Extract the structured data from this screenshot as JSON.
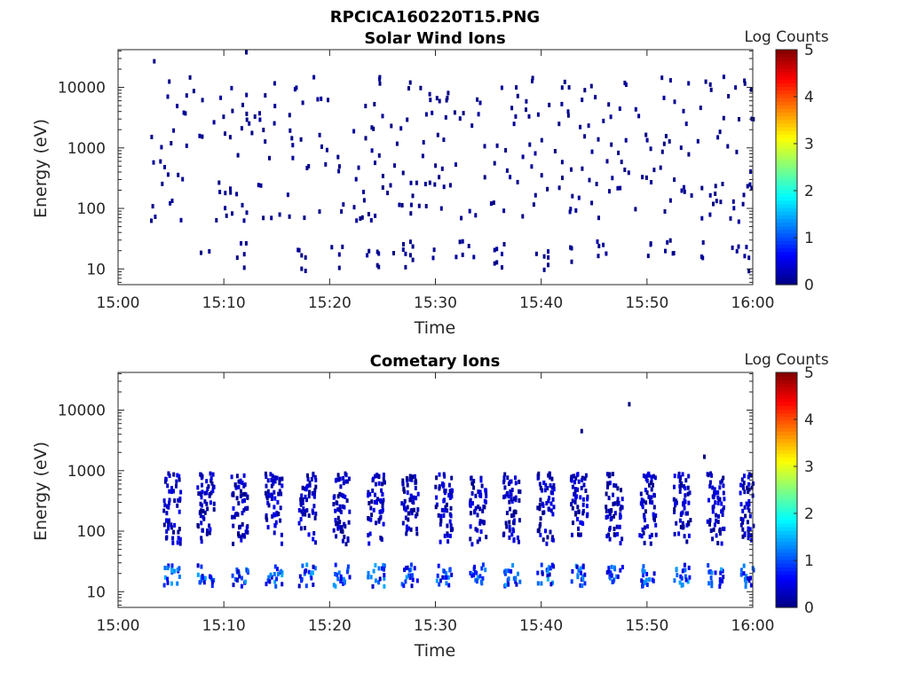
{
  "figure": {
    "filename_title": "RPCICA160220T15.PNG"
  },
  "colors": {
    "axis": "#262626",
    "colormap": [
      "#000080",
      "#0000ff",
      "#0080ff",
      "#00ffff",
      "#80ff80",
      "#ffff00",
      "#ff8000",
      "#ff0000",
      "#800000"
    ]
  },
  "chart_data": [
    {
      "type": "heatmap",
      "title": "Solar Wind Ions",
      "xlabel": "Time",
      "ylabel": "Energy (eV)",
      "y_scale": "log",
      "xlim": [
        "15:00",
        "16:00"
      ],
      "ylim": [
        5.5,
        42000
      ],
      "x_ticks": [
        "15:00",
        "15:10",
        "15:20",
        "15:30",
        "15:40",
        "15:50",
        "16:00"
      ],
      "y_ticks": [
        10,
        100,
        1000,
        10000
      ],
      "y_tick_labels": [
        "10",
        "100",
        "1000",
        "10000"
      ],
      "colorbar": {
        "label": "Log Counts",
        "range": [
          0,
          5
        ],
        "ticks": [
          "0",
          "1",
          "2",
          "3",
          "4",
          "5"
        ]
      },
      "seed": 7,
      "low_band_times_min": [
        8,
        11.5,
        17,
        20.5,
        24,
        26.5,
        28,
        30,
        32,
        33,
        36,
        40,
        42.5,
        45.5,
        50,
        52,
        55,
        58.5,
        59.5
      ],
      "low_band_energy_eV": [
        15,
        30
      ],
      "sparse_points": {
        "count": 330,
        "time_range_min": [
          3,
          60
        ],
        "energy_range_eV": [
          60,
          15000
        ]
      },
      "sample_points": [
        {
          "t_min": 3.3,
          "energy_eV": 27000,
          "log_counts": 0
        },
        {
          "t_min": 12.0,
          "energy_eV": 38000,
          "log_counts": 0
        },
        {
          "t_min": 44.0,
          "energy_eV": 9000,
          "log_counts": 0
        },
        {
          "t_min": 27.5,
          "energy_eV": 12000,
          "log_counts": 0
        }
      ]
    },
    {
      "type": "heatmap",
      "title": "Cometary Ions",
      "xlabel": "Time",
      "ylabel": "Energy (eV)",
      "y_scale": "log",
      "xlim": [
        "15:00",
        "16:00"
      ],
      "ylim": [
        5.5,
        42000
      ],
      "x_ticks": [
        "15:00",
        "15:10",
        "15:20",
        "15:30",
        "15:40",
        "15:50",
        "16:00"
      ],
      "y_ticks": [
        10,
        100,
        1000,
        10000
      ],
      "y_tick_labels": [
        "10",
        "100",
        "1000",
        "10000"
      ],
      "colorbar": {
        "label": "Log Counts",
        "range": [
          0,
          5
        ],
        "ticks": [
          "0",
          "1",
          "2",
          "3",
          "4",
          "5"
        ]
      },
      "seed": 13,
      "burst_times_min": [
        5,
        8.2,
        11.4,
        14.6,
        17.8,
        21,
        24.3,
        27.5,
        30.7,
        33.9,
        37.1,
        40.3,
        43.5,
        46.8,
        50,
        53.2,
        56.4,
        59.5
      ],
      "burst_duration_min": 1.6,
      "upper_band_energy_eV": [
        60,
        900
      ],
      "lower_band_energy_eV": [
        12,
        28
      ],
      "lower_band_log_counts": [
        0.3,
        1.5
      ],
      "upper_band_log_counts": [
        0,
        0.6
      ],
      "outliers": [
        {
          "t_min": 48.2,
          "energy_eV": 12500,
          "log_counts": 0
        },
        {
          "t_min": 43.7,
          "energy_eV": 4500,
          "log_counts": 0
        },
        {
          "t_min": 55.3,
          "energy_eV": 1700,
          "log_counts": 0
        }
      ]
    }
  ]
}
